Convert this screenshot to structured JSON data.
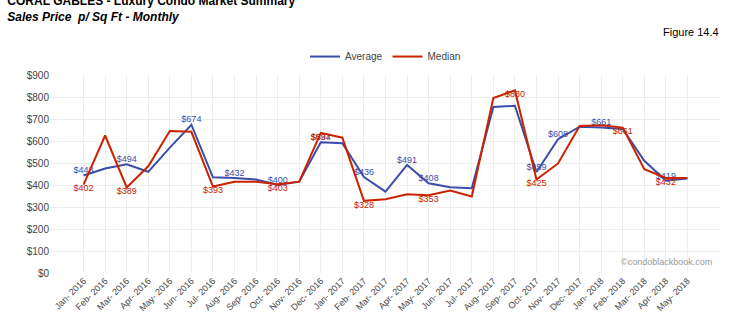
{
  "chart_data": {
    "type": "line",
    "title": "CORAL GABLES - Luxury Condo Market Summary",
    "subtitle": "Sales Price  p/ Sq Ft - Monthly",
    "annotations": [
      "Figure 14.4",
      "©condoblackbook.com"
    ],
    "categories": [
      "Jan- 2016",
      "Feb- 2016",
      "Mar- 2016",
      "Apr- 2016",
      "May- 2016",
      "Jun- 2016",
      "Jul- 2016",
      "Aug- 2016",
      "Sep- 2016",
      "Oct- 2016",
      "Nov- 2016",
      "Dec- 2016",
      "Jan- 2017",
      "Feb- 2017",
      "Mar- 2017",
      "Apr- 2017",
      "May- 2017",
      "Jun- 2017",
      "Jul- 2017",
      "Aug- 2017",
      "Sep- 2017",
      "Oct- 2017",
      "Nov- 2017",
      "Dec- 2017",
      "Jan- 2018",
      "Feb- 2018",
      "Mar- 2018",
      "Apr- 2018",
      "May- 2018"
    ],
    "series": [
      {
        "name": "Average",
        "color": "#3a4dab",
        "values": [
          443,
          475,
          494,
          460,
          570,
          674,
          435,
          432,
          425,
          400,
          415,
          594,
          590,
          436,
          370,
          491,
          408,
          390,
          385,
          755,
          760,
          459,
          608,
          665,
          661,
          655,
          510,
          419,
          430
        ],
        "value_labels": [
          "$443",
          null,
          "$494",
          null,
          null,
          "$674",
          null,
          "$432",
          null,
          "$400",
          null,
          "$594",
          null,
          "$436",
          null,
          "$491",
          "$408",
          null,
          null,
          null,
          null,
          "$459",
          "$608",
          null,
          "$661",
          null,
          null,
          "$419",
          null
        ]
      },
      {
        "name": "Median",
        "color": "#cc2200",
        "values": [
          402,
          625,
          389,
          485,
          645,
          642,
          393,
          415,
          415,
          403,
          415,
          637,
          615,
          328,
          335,
          358,
          353,
          375,
          348,
          795,
          830,
          425,
          498,
          668,
          672,
          661,
          472,
          432,
          432
        ],
        "value_labels": [
          "$402",
          null,
          "$389",
          null,
          null,
          null,
          "$393",
          null,
          null,
          "$403",
          null,
          "$637",
          null,
          "$328",
          null,
          null,
          "$353",
          null,
          null,
          null,
          "$830",
          "$425",
          null,
          null,
          null,
          "$661",
          null,
          "$432",
          null
        ]
      }
    ],
    "data_labels": true,
    "ylim": [
      0,
      900
    ],
    "yticks": [
      {
        "value": 0,
        "label": "$0"
      },
      {
        "value": 100,
        "label": "$100"
      },
      {
        "value": 200,
        "label": "$200"
      },
      {
        "value": 300,
        "label": "$300"
      },
      {
        "value": 400,
        "label": "$400"
      },
      {
        "value": 500,
        "label": "$500"
      },
      {
        "value": 600,
        "label": "$600"
      },
      {
        "value": 700,
        "label": "$700"
      },
      {
        "value": 800,
        "label": "$800"
      },
      {
        "value": 900,
        "label": "$900"
      }
    ],
    "grid": true,
    "legend": "top"
  }
}
